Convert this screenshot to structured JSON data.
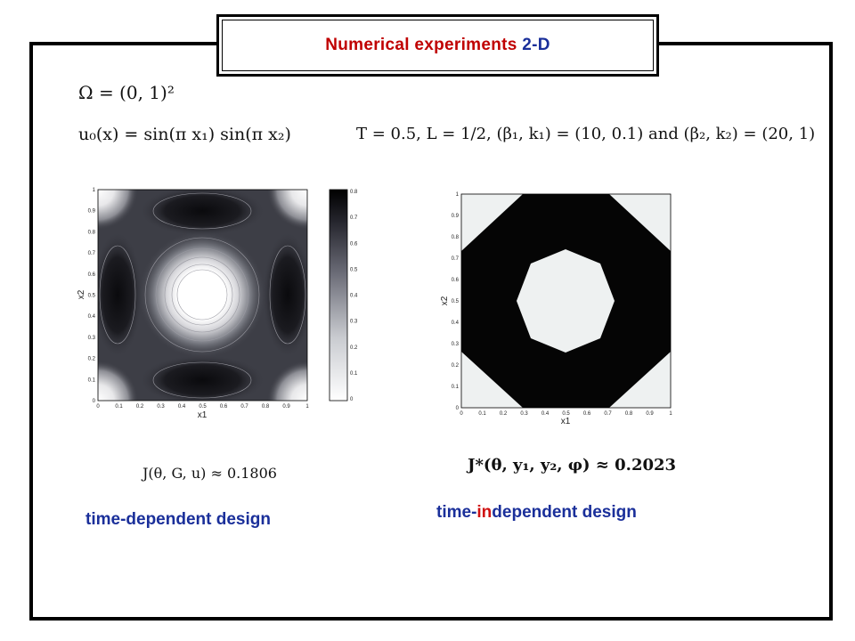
{
  "slide": {
    "title_main": "Numerical experiments",
    "title_suffix": "2-D",
    "domain_eq": "Ω = (0, 1)²",
    "initial_cond": "u₀(x) = sin(π x₁) sin(π x₂)",
    "params": "T = 0.5, L = 1/2, (β₁, k₁) = (10, 0.1) and (β₂, k₂) = (20, 1)",
    "left_value": "J(θ, G, u) ≈ 0.1806",
    "right_value": "J*(θ, y₁, y₂, φ) ≈ 0.2023",
    "caption_left": "time-dependent design",
    "caption_right_prefix": "time-",
    "caption_right_highlight": "in",
    "caption_right_suffix": "dependent design"
  },
  "left_plot": {
    "xlabel": "x1",
    "ylabel": "x2",
    "ticks": [
      "0",
      "0.1",
      "0.2",
      "0.3",
      "0.4",
      "0.5",
      "0.6",
      "0.7",
      "0.8",
      "0.9",
      "1"
    ],
    "colorbar_ticks": [
      "0",
      "0.1",
      "0.2",
      "0.3",
      "0.4",
      "0.5",
      "0.6",
      "0.7",
      "0.8"
    ]
  },
  "right_plot": {
    "xlabel": "x1",
    "ylabel": "x2",
    "ticks": [
      "0",
      "0.1",
      "0.2",
      "0.3",
      "0.4",
      "0.5",
      "0.6",
      "0.7",
      "0.8",
      "0.9",
      "1"
    ]
  }
}
